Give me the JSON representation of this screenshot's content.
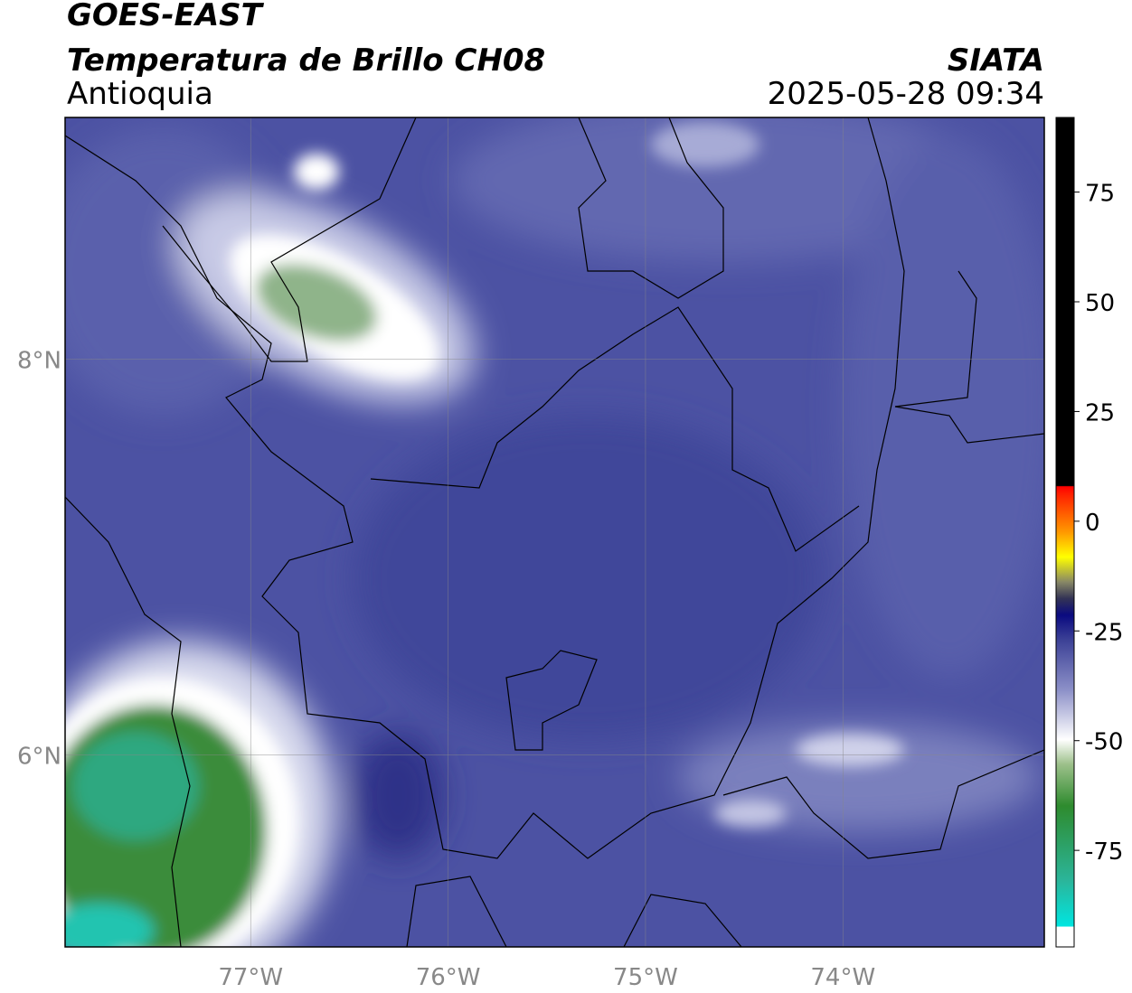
{
  "header": {
    "satellite": "GOES-EAST",
    "title": "Temperatura de Brillo CH08",
    "region": "Antioquia",
    "source": "SIATA",
    "datetime": "2025-05-28 09:34"
  },
  "map": {
    "lonlim": [
      -77.94,
      -72.98
    ],
    "latlim": [
      5.03,
      9.22
    ],
    "lonticks": [
      {
        "value": -77,
        "label": "77°W"
      },
      {
        "value": -76,
        "label": "76°W"
      },
      {
        "value": -75,
        "label": "75°W"
      },
      {
        "value": -74,
        "label": "74°W"
      }
    ],
    "latticks": [
      {
        "value": 8,
        "label": "8°N"
      },
      {
        "value": 6,
        "label": "6°N"
      }
    ],
    "grid": true
  },
  "colorbar": {
    "lim": [
      -97,
      92
    ],
    "ticks": [
      75,
      50,
      25,
      0,
      -25,
      -50,
      -75
    ]
  }
}
